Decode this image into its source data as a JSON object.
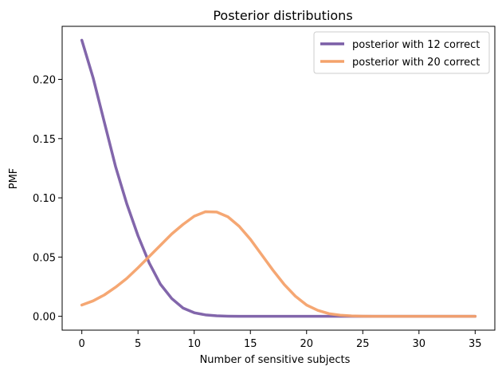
{
  "chart_data": {
    "type": "line",
    "title": "Posterior distributions",
    "xlabel": "Number of sensitive subjects",
    "ylabel": "PMF",
    "xlim": [
      -1.75,
      36.75
    ],
    "ylim": [
      -0.0117,
      0.2448
    ],
    "xticks": [
      0,
      5,
      10,
      15,
      20,
      25,
      30,
      35
    ],
    "yticks": [
      0.0,
      0.05,
      0.1,
      0.15,
      0.2
    ],
    "ytick_labels": [
      "0.00",
      "0.05",
      "0.10",
      "0.15",
      "0.20"
    ],
    "grid": false,
    "legend_position": "top-right",
    "x": [
      0,
      1,
      2,
      3,
      4,
      5,
      6,
      7,
      8,
      9,
      10,
      11,
      12,
      13,
      14,
      15,
      16,
      17,
      18,
      19,
      20,
      21,
      22,
      23,
      24,
      25,
      26,
      27,
      28,
      29,
      30,
      31,
      32,
      33,
      34,
      35
    ],
    "series": [
      {
        "name": "posterior with 12 correct",
        "color": "#7b5ea7",
        "values": [
          0.2331,
          0.2015,
          0.164,
          0.1265,
          0.095,
          0.068,
          0.045,
          0.027,
          0.015,
          0.007,
          0.003,
          0.0012,
          0.0004,
          0.0001,
          0.0,
          0.0,
          0.0,
          0.0,
          0.0,
          0.0,
          0.0,
          0.0,
          0.0,
          0.0,
          0.0,
          0.0,
          0.0,
          0.0,
          0.0,
          0.0,
          0.0,
          0.0,
          0.0,
          0.0,
          0.0,
          0.0
        ]
      },
      {
        "name": "posterior with 20 correct",
        "color": "#f4a26b",
        "values": [
          0.0095,
          0.013,
          0.018,
          0.0245,
          0.032,
          0.041,
          0.0505,
          0.06,
          0.0695,
          0.0775,
          0.0845,
          0.0883,
          0.088,
          0.084,
          0.076,
          0.065,
          0.052,
          0.039,
          0.027,
          0.017,
          0.0095,
          0.005,
          0.0022,
          0.0009,
          0.0003,
          0.0001,
          0.0,
          0.0,
          0.0,
          0.0,
          0.0,
          0.0,
          0.0,
          0.0,
          0.0,
          0.0
        ]
      }
    ]
  }
}
